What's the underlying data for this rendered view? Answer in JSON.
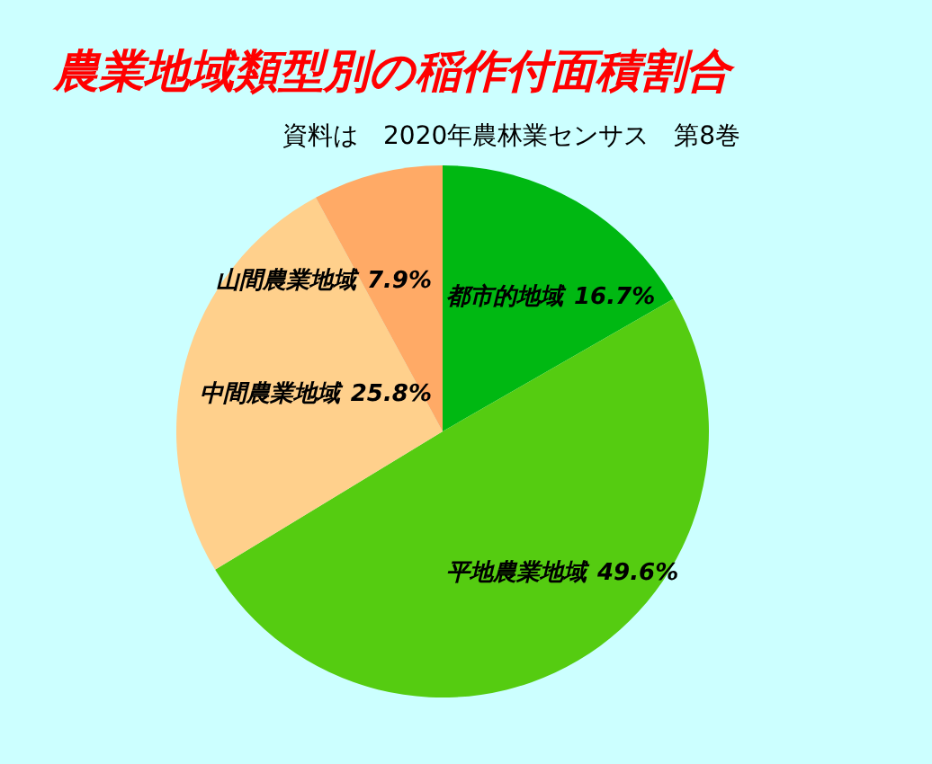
{
  "chart_data": {
    "type": "pie",
    "title": "農業地域類型別の稲作付面積割合",
    "subtitle": "資料は　2020年農林業センサス　第8巻",
    "categories": [
      "都市的地域",
      "平地農業地域",
      "中間農業地域",
      "山間農業地域"
    ],
    "values": [
      16.7,
      49.6,
      25.8,
      7.9
    ],
    "colors": [
      "#00b812",
      "#55cc11",
      "#ffd08c",
      "#ffaa66"
    ],
    "value_labels": [
      "16.7%",
      "49.6%",
      "25.8%",
      "7.9%"
    ]
  }
}
